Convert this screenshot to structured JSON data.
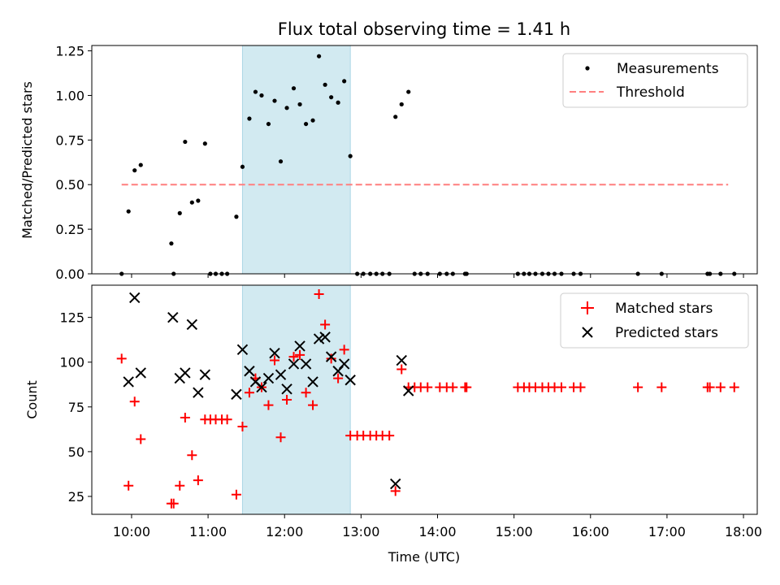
{
  "title": "Flux total observing time = 1.41 h",
  "colors": {
    "matched": "#ff0000",
    "predicted": "#000000",
    "measure": "#000000",
    "threshold": "#ff7f7f",
    "span": "#add8e6"
  },
  "time_ticks": [
    "10:00",
    "11:00",
    "12:00",
    "13:00",
    "14:00",
    "15:00",
    "16:00",
    "17:00",
    "18:00"
  ],
  "chart_data": [
    {
      "type": "scatter",
      "name": "ratio-panel",
      "ylabel": "Matched/Predicted stars",
      "ylim": [
        0,
        1.28
      ],
      "yticks": [
        "0.00",
        "0.25",
        "0.50",
        "0.75",
        "1.00",
        "1.25"
      ],
      "x_unit": "hours UTC",
      "xlim": [
        9.48,
        18.18
      ],
      "highlight_span": [
        11.45,
        12.86
      ],
      "threshold": {
        "value": 0.5,
        "x_range": [
          9.87,
          17.8
        ]
      },
      "legend": [
        "Measurements",
        "Threshold"
      ],
      "series": [
        {
          "name": "Measurements",
          "x": [
            9.87,
            9.96,
            10.04,
            10.12,
            10.52,
            10.55,
            10.63,
            10.7,
            10.79,
            10.87,
            10.96,
            11.03,
            11.1,
            11.18,
            11.25,
            11.37,
            11.45,
            11.54,
            11.62,
            11.7,
            11.79,
            11.87,
            11.95,
            12.03,
            12.12,
            12.2,
            12.28,
            12.37,
            12.45,
            12.53,
            12.61,
            12.7,
            12.78,
            12.86,
            12.95,
            13.03,
            13.12,
            13.2,
            13.28,
            13.37,
            13.45,
            13.53,
            13.62,
            13.7,
            13.78,
            13.87,
            14.03,
            14.12,
            14.2,
            14.36,
            14.38,
            15.05,
            15.13,
            15.2,
            15.28,
            15.37,
            15.45,
            15.53,
            15.62,
            15.78,
            15.87,
            16.62,
            16.93,
            17.53,
            17.56,
            17.7,
            17.88
          ],
          "y": [
            0.0,
            0.35,
            0.58,
            0.61,
            0.17,
            0.0,
            0.34,
            0.74,
            0.4,
            0.41,
            0.73,
            0.0,
            0.0,
            0.0,
            0.0,
            0.32,
            0.6,
            0.87,
            1.02,
            1.0,
            0.84,
            0.97,
            0.63,
            0.93,
            1.04,
            0.95,
            0.84,
            0.86,
            1.22,
            1.06,
            0.99,
            0.96,
            1.08,
            0.66,
            0.0,
            0.0,
            0.0,
            0.0,
            0.0,
            0.0,
            0.88,
            0.95,
            1.02,
            0.0,
            0.0,
            0.0,
            0.0,
            0.0,
            0.0,
            0.0,
            0.0,
            0.0,
            0.0,
            0.0,
            0.0,
            0.0,
            0.0,
            0.0,
            0.0,
            0.0,
            0.0,
            0.0,
            0.0,
            0.0,
            0.0,
            0.0,
            0.0
          ]
        }
      ]
    },
    {
      "type": "scatter",
      "name": "count-panel",
      "ylabel": "Count",
      "xlabel": "Time (UTC)",
      "ylim": [
        15,
        143
      ],
      "yticks": [
        "25",
        "50",
        "75",
        "100",
        "125"
      ],
      "x_unit": "hours UTC",
      "xlim": [
        9.48,
        18.18
      ],
      "highlight_span": [
        11.45,
        12.86
      ],
      "legend": [
        "Matched stars",
        "Predicted stars"
      ],
      "series": [
        {
          "name": "Matched stars",
          "marker": "plus",
          "x": [
            9.87,
            9.96,
            10.04,
            10.12,
            10.52,
            10.55,
            10.63,
            10.7,
            10.79,
            10.87,
            10.96,
            11.03,
            11.1,
            11.18,
            11.25,
            11.37,
            11.45,
            11.54,
            11.62,
            11.7,
            11.79,
            11.87,
            11.95,
            12.03,
            12.12,
            12.2,
            12.28,
            12.37,
            12.45,
            12.53,
            12.61,
            12.7,
            12.78,
            12.86,
            12.95,
            13.03,
            13.12,
            13.2,
            13.28,
            13.37,
            13.45,
            13.53,
            13.62,
            13.7,
            13.78,
            13.87,
            14.03,
            14.12,
            14.2,
            14.36,
            14.38,
            15.05,
            15.13,
            15.2,
            15.28,
            15.37,
            15.45,
            15.53,
            15.62,
            15.78,
            15.87,
            16.62,
            16.93,
            17.53,
            17.56,
            17.7,
            17.88
          ],
          "y": [
            102,
            31,
            78,
            57,
            21,
            21,
            31,
            69,
            48,
            34,
            68,
            68,
            68,
            68,
            68,
            26,
            64,
            83,
            91,
            86,
            76,
            101,
            58,
            79,
            103,
            104,
            83,
            76,
            138,
            121,
            102,
            91,
            107,
            59,
            59,
            59,
            59,
            59,
            59,
            59,
            28,
            96,
            86,
            86,
            86,
            86,
            86,
            86,
            86,
            86,
            86,
            86,
            86,
            86,
            86,
            86,
            86,
            86,
            86,
            86,
            86,
            86,
            86,
            86,
            86,
            86,
            86
          ]
        },
        {
          "name": "Predicted stars",
          "marker": "x",
          "x": [
            9.96,
            10.04,
            10.12,
            10.54,
            10.63,
            10.7,
            10.79,
            10.87,
            10.96,
            11.37,
            11.45,
            11.54,
            11.62,
            11.7,
            11.79,
            11.87,
            11.95,
            12.03,
            12.12,
            12.2,
            12.28,
            12.37,
            12.45,
            12.53,
            12.61,
            12.7,
            12.78,
            12.86,
            13.45,
            13.53,
            13.62
          ],
          "y": [
            89,
            136,
            94,
            125,
            91,
            94,
            121,
            83,
            93,
            82,
            107,
            95,
            89,
            86,
            91,
            105,
            93,
            85,
            99,
            109,
            99,
            89,
            113,
            114,
            103,
            95,
            99,
            90,
            32,
            101,
            84
          ]
        }
      ]
    }
  ]
}
